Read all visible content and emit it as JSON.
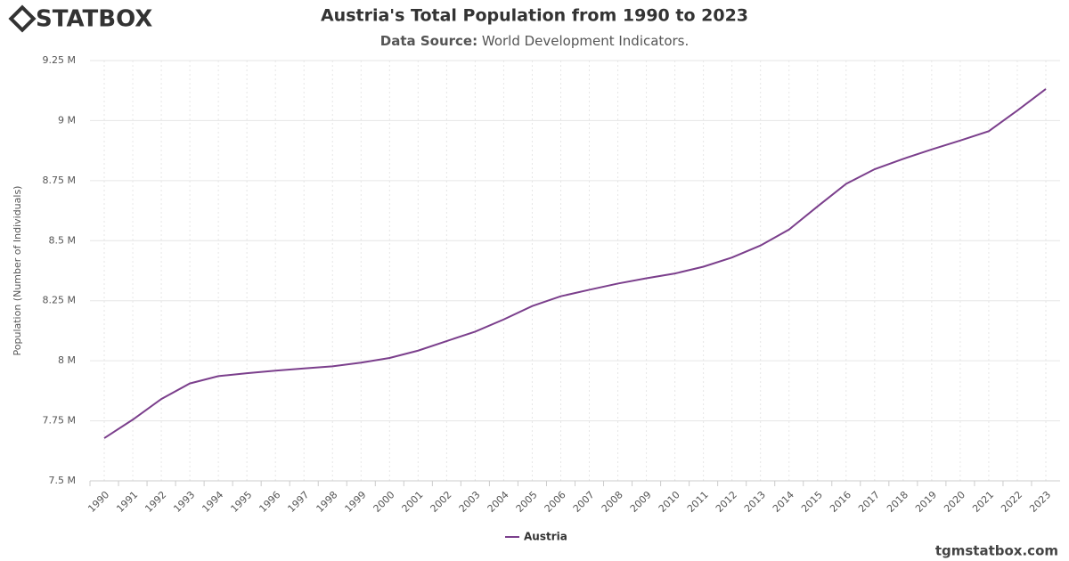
{
  "logo": "STATBOX",
  "footer": "tgmstatbox.com",
  "chart_data": {
    "type": "line",
    "title": "Austria's Total Population from 1990 to 2023",
    "subtitle_label": "Data Source:",
    "subtitle": "World Development Indicators.",
    "y_label": "Population (Number of Individuals)",
    "categories": [
      "1990",
      "1991",
      "1992",
      "1993",
      "1994",
      "1995",
      "1996",
      "1997",
      "1998",
      "1999",
      "2000",
      "2001",
      "2002",
      "2003",
      "2004",
      "2005",
      "2006",
      "2007",
      "2008",
      "2009",
      "2010",
      "2011",
      "2012",
      "2013",
      "2014",
      "2015",
      "2016",
      "2017",
      "2018",
      "2019",
      "2020",
      "2021",
      "2022",
      "2023"
    ],
    "series": [
      {
        "name": "Austria",
        "color": "#7b3f8c",
        "values": [
          7677850,
          7754891,
          7840709,
          7905633,
          7936118,
          7948278,
          7959017,
          7968041,
          7976789,
          7992324,
          8011566,
          8042293,
          8081957,
          8121423,
          8171966,
          8227829,
          8268641,
          8295487,
          8321496,
          8343323,
          8363404,
          8391643,
          8429991,
          8479823,
          8546356,
          8642699,
          8736668,
          8797566,
          8840521,
          8879920,
          8916864,
          8955797,
          9041851,
          9131761
        ]
      }
    ],
    "ylim": [
      7500000,
      9250000
    ],
    "yticks": [
      {
        "value": 7500000,
        "label": "7.5 M"
      },
      {
        "value": 7750000,
        "label": "7.75 M"
      },
      {
        "value": 8000000,
        "label": "8 M"
      },
      {
        "value": 8250000,
        "label": "8.25 M"
      },
      {
        "value": 8500000,
        "label": "8.5 M"
      },
      {
        "value": 8750000,
        "label": "8.75 M"
      },
      {
        "value": 9000000,
        "label": "9 M"
      },
      {
        "value": 9250000,
        "label": "9.25 M"
      }
    ],
    "grid": true,
    "legend": "bottom"
  }
}
